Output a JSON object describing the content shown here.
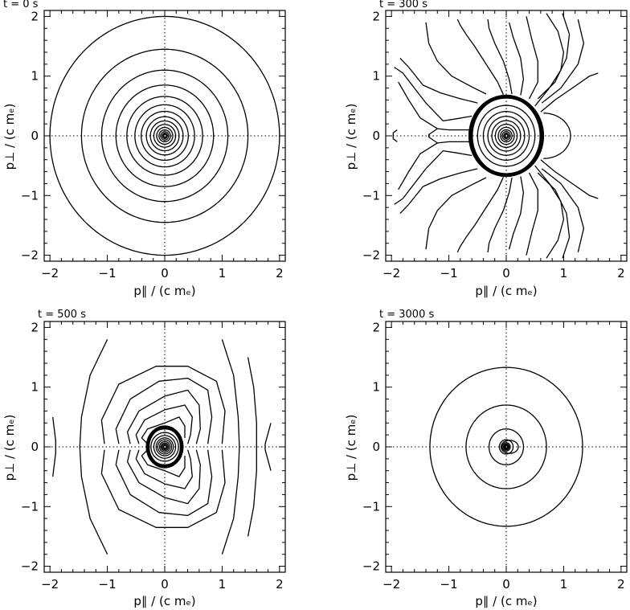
{
  "figure": {
    "xlabel": "p∥ / (c mₑ)",
    "ylabel": "p⊥ / (c mₑ)",
    "line_color": "#000000"
  },
  "chart_data": [
    {
      "type": "contour",
      "title": "t = 0 s",
      "xlabel": "p∥ / (c mₑ)",
      "ylabel": "p⊥ / (c mₑ)",
      "xlim": [
        -2.1,
        2.1
      ],
      "ylim": [
        -2.1,
        2.1
      ],
      "xticks": [
        -2,
        -1,
        0,
        1,
        2
      ],
      "yticks": [
        -2,
        -1,
        0,
        1,
        2
      ],
      "reference_lines": "dotted lines at x=0 and y=0",
      "contour_shape": "concentric circles centered at origin",
      "radii": [
        2.0,
        1.45,
        1.1,
        0.85,
        0.66,
        0.52,
        0.41,
        0.32,
        0.25,
        0.19,
        0.14,
        0.1,
        0.07,
        0.045,
        0.025
      ]
    },
    {
      "type": "contour",
      "title": "t = 300 s",
      "xlabel": "p∥ / (c mₑ)",
      "ylabel": "p⊥ / (c mₑ)",
      "xlim": [
        -2.1,
        2.1
      ],
      "ylim": [
        -2.1,
        2.1
      ],
      "xticks": [
        -2,
        -1,
        0,
        1,
        2
      ],
      "yticks": [
        -2,
        -1,
        0,
        1,
        2
      ],
      "reference_lines": "dotted lines at x=0 and y=0",
      "core_boundary_x": 0.65,
      "core_boundary_y": 0.68,
      "right_loop_extent_x": 1.12
    },
    {
      "type": "contour",
      "title": "t = 500 s",
      "xlabel": "p∥ / (c mₑ)",
      "ylabel": "p⊥ / (c mₑ)",
      "xlim": [
        -2.1,
        2.1
      ],
      "ylim": [
        -2.1,
        2.1
      ],
      "xticks": [
        -2,
        -1,
        0,
        1,
        2
      ],
      "yticks": [
        -2,
        -1,
        0,
        1,
        2
      ],
      "reference_lines": "dotted lines at x=0 and y=0",
      "core_boundary_x": 0.32,
      "core_boundary_y": 0.35
    },
    {
      "type": "contour",
      "title": "t = 3000 s",
      "xlabel": "p∥ / (c mₑ)",
      "ylabel": "p⊥ / (c mₑ)",
      "xlim": [
        -2.1,
        2.1
      ],
      "ylim": [
        -2.1,
        2.1
      ],
      "xticks": [
        -2,
        -1,
        0,
        1,
        2
      ],
      "yticks": [
        -2,
        -1,
        0,
        1,
        2
      ],
      "reference_lines": "dotted lines at x=0 and y=0",
      "contour_shape": "concentric circles with small asymmetric core",
      "radii": [
        1.33,
        0.7,
        0.3,
        0.12
      ]
    }
  ]
}
